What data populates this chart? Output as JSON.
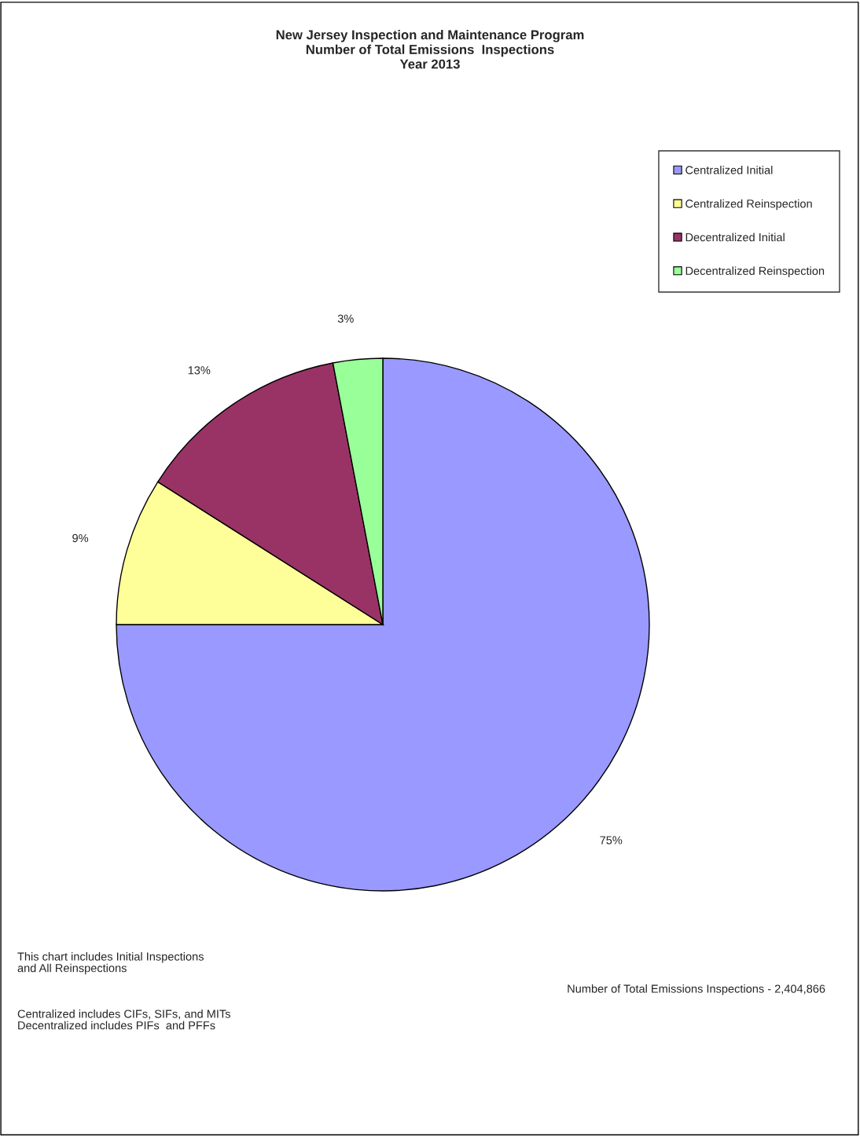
{
  "chart_data": {
    "type": "pie",
    "title": "New Jersey Inspection and Maintenance Program\nNumber of Total Emissions  Inspections\nYear 2013",
    "categories": [
      "Centralized Initial",
      "Centralized Reinspection",
      "Decentralized Initial",
      "Decentralized Reinspection"
    ],
    "values": [
      75,
      9,
      13,
      3
    ],
    "value_labels": [
      "75%",
      "9%",
      "13%",
      "3%"
    ],
    "colors": [
      "#9999ff",
      "#ffff99",
      "#993366",
      "#99ff99"
    ],
    "legend": "top right",
    "annotations": [
      "This chart includes Initial Inspections\nand All Reinspections",
      "Centralized includes CIFs, SIFs, and MITs\nDecentralized includes PIFs  and PFFs",
      "Number of Total Emissions Inspections - 2,404,866"
    ]
  }
}
